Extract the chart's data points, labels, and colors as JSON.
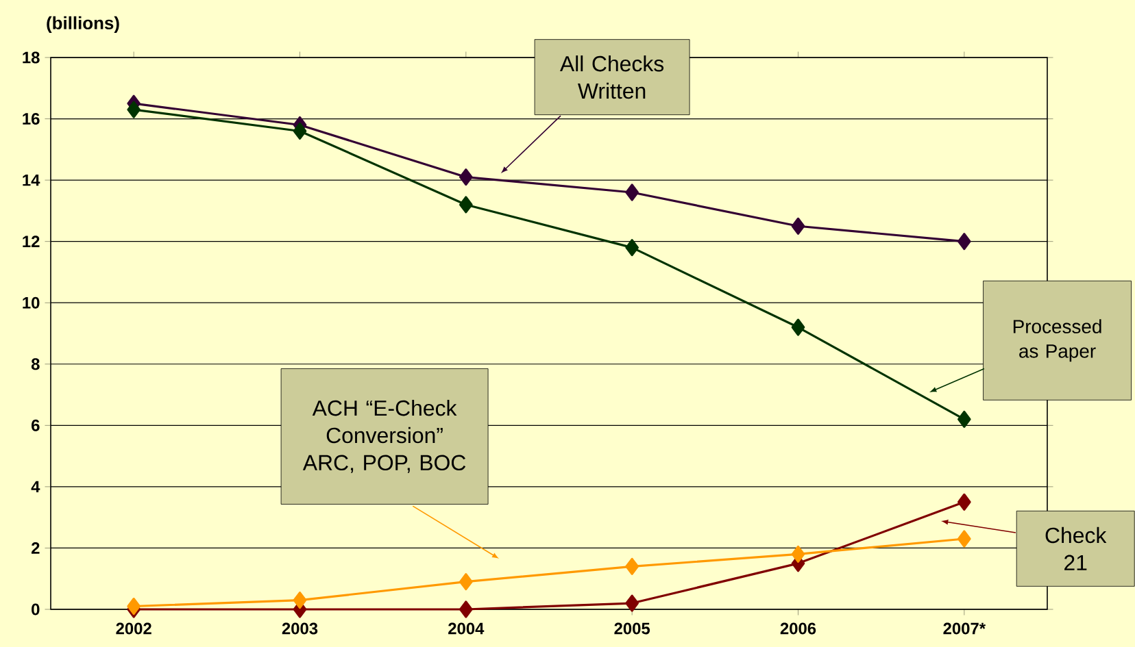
{
  "chart_data": {
    "type": "line",
    "ylabel": "(billions)",
    "categories": [
      "2002",
      "2003",
      "2004",
      "2005",
      "2006",
      "2007*"
    ],
    "series": [
      {
        "color": "#330033",
        "values": [
          16.5,
          15.8,
          14.1,
          13.6,
          12.5,
          12.0
        ]
      },
      {
        "color": "#003300",
        "values": [
          16.3,
          15.6,
          13.2,
          11.8,
          9.2,
          6.2
        ]
      },
      {
        "color": "#800000",
        "values": [
          0,
          0,
          0,
          0.2,
          1.5,
          3.5
        ]
      },
      {
        "color": "#ff9900",
        "values": [
          0.1,
          0.3,
          0.9,
          1.4,
          1.8,
          2.3
        ]
      }
    ],
    "annotations": [
      "All Checks Written",
      "Processed as Paper",
      "Check 21",
      "ACH “E-Check Conversion” ARC, POP, BOC"
    ],
    "ylim": [
      0,
      18
    ],
    "yticks": [
      0,
      2,
      4,
      6,
      8,
      10,
      12,
      14,
      16,
      18
    ],
    "grid": "y",
    "marker": "diamond",
    "line_style": "solid"
  }
}
